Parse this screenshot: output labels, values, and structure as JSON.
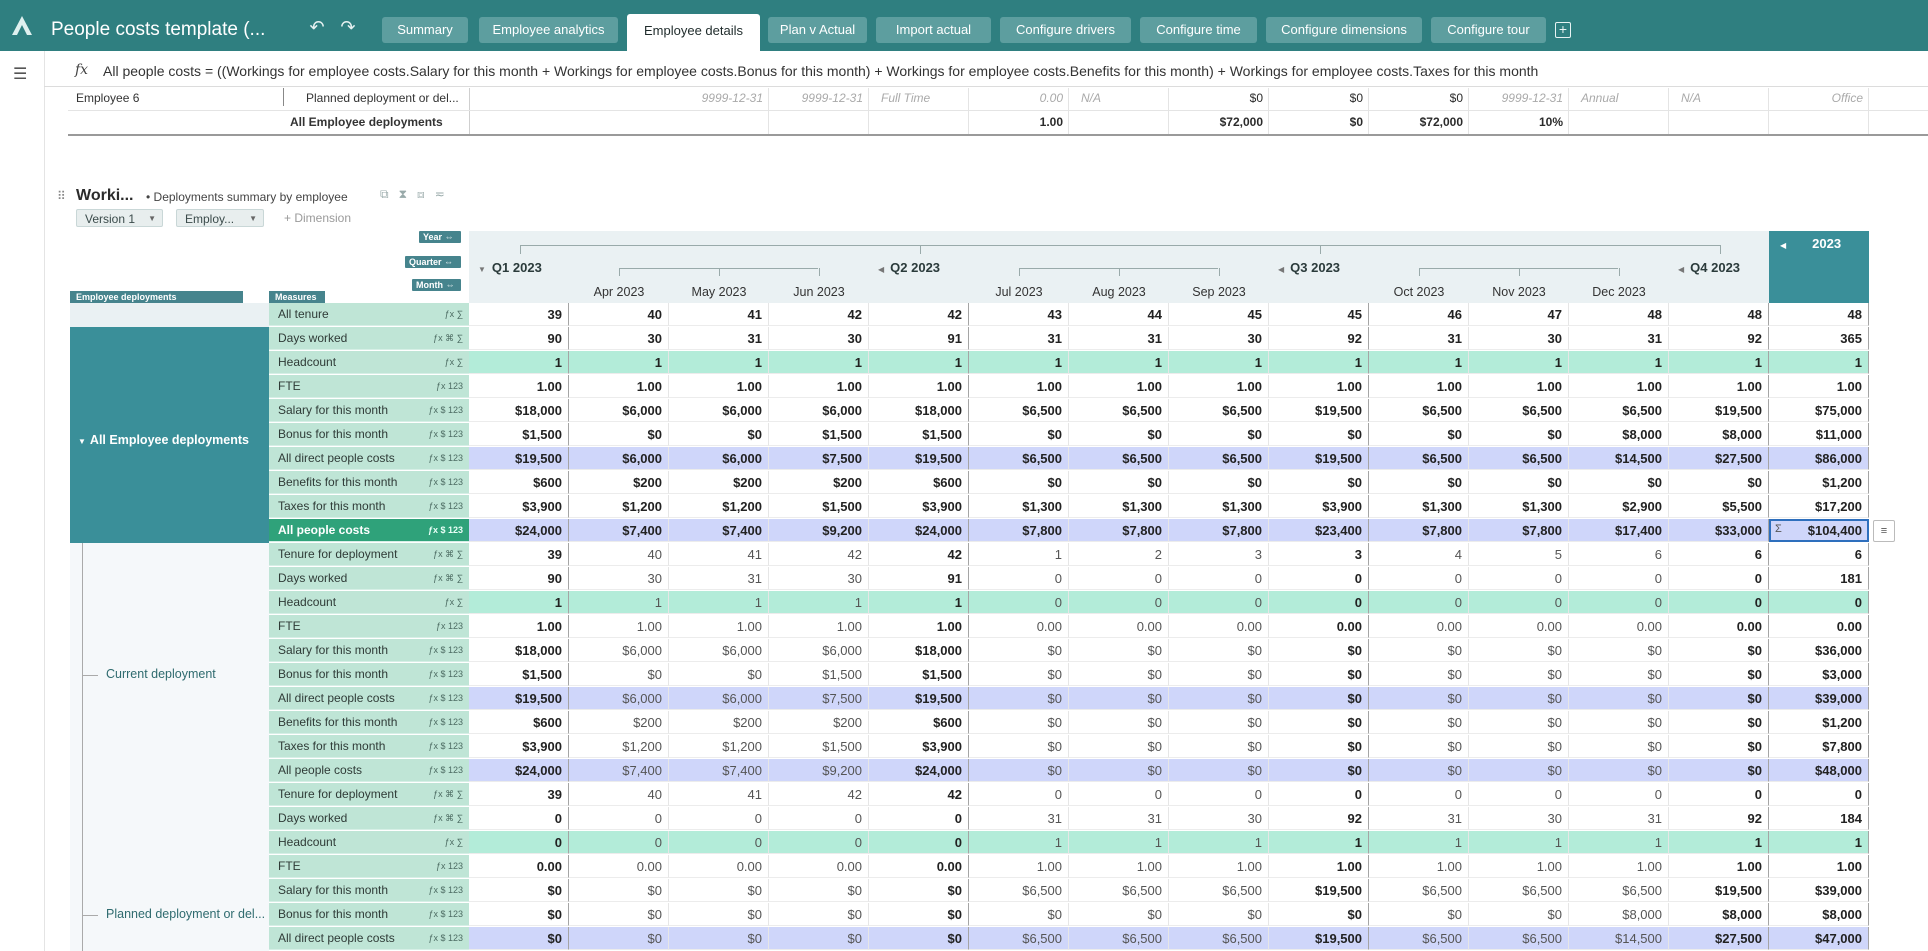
{
  "app": {
    "title": "People costs template (..."
  },
  "tabs": [
    "Summary",
    "Employee analytics",
    "Employee details",
    "Plan v Actual",
    "Import actual",
    "Configure drivers",
    "Configure time",
    "Configure dimensions",
    "Configure tour"
  ],
  "active_tab": "Employee details",
  "formula": "All people costs = ((Workings for employee costs.Salary for this month + Workings for employee costs.Bonus for this month) + Workings for employee costs.Benefits for this month) + Workings for employee costs.Taxes for this month",
  "upper": {
    "employee": "Employee 6",
    "planned_label": "Planned deployment or del...",
    "all_label": "All Employee deployments",
    "row1": [
      "9999-12-31",
      "9999-12-31",
      "Full Time",
      "0.00",
      "N/A",
      "$0",
      "$0",
      "$0",
      "9999-12-31",
      "Annual",
      "N/A",
      "Office"
    ],
    "row2": [
      "1.00",
      "$72,000",
      "$0",
      "$72,000",
      "10%"
    ]
  },
  "block": {
    "title": "Worki...",
    "subtitle": "Deployments summary by employee",
    "version_chip": "Version 1",
    "employee_chip": "Employ...",
    "add_dimension": "+ Dimension",
    "axis": {
      "year": "Year",
      "quarter": "Quarter",
      "month": "Month"
    },
    "page_tag_deployments": "Employee deployments",
    "page_tag_measures": "Measures"
  },
  "columns": {
    "quarters": [
      "Q1 2023",
      "Q2 2023",
      "Q3 2023",
      "Q4 2023"
    ],
    "months": [
      "Apr 2023",
      "May 2023",
      "Jun 2023",
      "Jul 2023",
      "Aug 2023",
      "Sep 2023",
      "Oct 2023",
      "Nov 2023",
      "Dec 2023"
    ],
    "year": "2023"
  },
  "groups": {
    "all": "All Employee deployments",
    "current": "Current deployment",
    "planned": "Planned deployment or del..."
  },
  "rows": [
    {
      "label": "All tenure",
      "vals": [
        "39",
        "40",
        "41",
        "42",
        "42",
        "43",
        "44",
        "45",
        "45",
        "46",
        "47",
        "48",
        "48",
        "48"
      ]
    },
    {
      "label": "Days worked",
      "vals": [
        "90",
        "30",
        "31",
        "30",
        "91",
        "31",
        "31",
        "30",
        "92",
        "31",
        "30",
        "31",
        "92",
        "365"
      ]
    },
    {
      "label": "Headcount",
      "vals": [
        "1",
        "1",
        "1",
        "1",
        "1",
        "1",
        "1",
        "1",
        "1",
        "1",
        "1",
        "1",
        "1",
        "1"
      ]
    },
    {
      "label": "FTE",
      "vals": [
        "1.00",
        "1.00",
        "1.00",
        "1.00",
        "1.00",
        "1.00",
        "1.00",
        "1.00",
        "1.00",
        "1.00",
        "1.00",
        "1.00",
        "1.00",
        "1.00"
      ]
    },
    {
      "label": "Salary for this month",
      "vals": [
        "$18,000",
        "$6,000",
        "$6,000",
        "$6,000",
        "$18,000",
        "$6,500",
        "$6,500",
        "$6,500",
        "$19,500",
        "$6,500",
        "$6,500",
        "$6,500",
        "$19,500",
        "$75,000"
      ]
    },
    {
      "label": "Bonus for this month",
      "vals": [
        "$1,500",
        "$0",
        "$0",
        "$1,500",
        "$1,500",
        "$0",
        "$0",
        "$0",
        "$0",
        "$0",
        "$0",
        "$8,000",
        "$8,000",
        "$11,000"
      ]
    },
    {
      "label": "All direct people costs",
      "vals": [
        "$19,500",
        "$6,000",
        "$6,000",
        "$7,500",
        "$19,500",
        "$6,500",
        "$6,500",
        "$6,500",
        "$19,500",
        "$6,500",
        "$6,500",
        "$14,500",
        "$27,500",
        "$86,000"
      ]
    },
    {
      "label": "Benefits for this month",
      "vals": [
        "$600",
        "$200",
        "$200",
        "$200",
        "$600",
        "$0",
        "$0",
        "$0",
        "$0",
        "$0",
        "$0",
        "$0",
        "$0",
        "$1,200"
      ]
    },
    {
      "label": "Taxes for this month",
      "vals": [
        "$3,900",
        "$1,200",
        "$1,200",
        "$1,500",
        "$3,900",
        "$1,300",
        "$1,300",
        "$1,300",
        "$3,900",
        "$1,300",
        "$1,300",
        "$2,900",
        "$5,500",
        "$17,200"
      ]
    },
    {
      "label": "All people costs",
      "vals": [
        "$24,000",
        "$7,400",
        "$7,400",
        "$9,200",
        "$24,000",
        "$7,800",
        "$7,800",
        "$7,800",
        "$23,400",
        "$7,800",
        "$7,800",
        "$17,400",
        "$33,000",
        "$104,400"
      ]
    },
    {
      "label": "Tenure for deployment",
      "vals": [
        "39",
        "40",
        "41",
        "42",
        "42",
        "1",
        "2",
        "3",
        "3",
        "4",
        "5",
        "6",
        "6",
        "6"
      ]
    },
    {
      "label": "Days worked",
      "vals": [
        "90",
        "30",
        "31",
        "30",
        "91",
        "0",
        "0",
        "0",
        "0",
        "0",
        "0",
        "0",
        "0",
        "181"
      ]
    },
    {
      "label": "Headcount",
      "vals": [
        "1",
        "1",
        "1",
        "1",
        "1",
        "0",
        "0",
        "0",
        "0",
        "0",
        "0",
        "0",
        "0",
        "0"
      ]
    },
    {
      "label": "FTE",
      "vals": [
        "1.00",
        "1.00",
        "1.00",
        "1.00",
        "1.00",
        "0.00",
        "0.00",
        "0.00",
        "0.00",
        "0.00",
        "0.00",
        "0.00",
        "0.00",
        "0.00"
      ]
    },
    {
      "label": "Salary for this month",
      "vals": [
        "$18,000",
        "$6,000",
        "$6,000",
        "$6,000",
        "$18,000",
        "$0",
        "$0",
        "$0",
        "$0",
        "$0",
        "$0",
        "$0",
        "$0",
        "$36,000"
      ]
    },
    {
      "label": "Bonus for this month",
      "vals": [
        "$1,500",
        "$0",
        "$0",
        "$1,500",
        "$1,500",
        "$0",
        "$0",
        "$0",
        "$0",
        "$0",
        "$0",
        "$0",
        "$0",
        "$3,000"
      ]
    },
    {
      "label": "All direct people costs",
      "vals": [
        "$19,500",
        "$6,000",
        "$6,000",
        "$7,500",
        "$19,500",
        "$0",
        "$0",
        "$0",
        "$0",
        "$0",
        "$0",
        "$0",
        "$0",
        "$39,000"
      ]
    },
    {
      "label": "Benefits for this month",
      "vals": [
        "$600",
        "$200",
        "$200",
        "$200",
        "$600",
        "$0",
        "$0",
        "$0",
        "$0",
        "$0",
        "$0",
        "$0",
        "$0",
        "$1,200"
      ]
    },
    {
      "label": "Taxes for this month",
      "vals": [
        "$3,900",
        "$1,200",
        "$1,200",
        "$1,500",
        "$3,900",
        "$0",
        "$0",
        "$0",
        "$0",
        "$0",
        "$0",
        "$0",
        "$0",
        "$7,800"
      ]
    },
    {
      "label": "All people costs",
      "vals": [
        "$24,000",
        "$7,400",
        "$7,400",
        "$9,200",
        "$24,000",
        "$0",
        "$0",
        "$0",
        "$0",
        "$0",
        "$0",
        "$0",
        "$0",
        "$48,000"
      ]
    },
    {
      "label": "Tenure for deployment",
      "vals": [
        "39",
        "40",
        "41",
        "42",
        "42",
        "0",
        "0",
        "0",
        "0",
        "0",
        "0",
        "0",
        "0",
        "0"
      ]
    },
    {
      "label": "Days worked",
      "vals": [
        "0",
        "0",
        "0",
        "0",
        "0",
        "31",
        "31",
        "30",
        "92",
        "31",
        "30",
        "31",
        "92",
        "184"
      ]
    },
    {
      "label": "Headcount",
      "vals": [
        "0",
        "0",
        "0",
        "0",
        "0",
        "1",
        "1",
        "1",
        "1",
        "1",
        "1",
        "1",
        "1",
        "1"
      ]
    },
    {
      "label": "FTE",
      "vals": [
        "0.00",
        "0.00",
        "0.00",
        "0.00",
        "0.00",
        "1.00",
        "1.00",
        "1.00",
        "1.00",
        "1.00",
        "1.00",
        "1.00",
        "1.00",
        "1.00"
      ]
    },
    {
      "label": "Salary for this month",
      "vals": [
        "$0",
        "$0",
        "$0",
        "$0",
        "$0",
        "$6,500",
        "$6,500",
        "$6,500",
        "$19,500",
        "$6,500",
        "$6,500",
        "$6,500",
        "$19,500",
        "$39,000"
      ]
    },
    {
      "label": "Bonus for this month",
      "vals": [
        "$0",
        "$0",
        "$0",
        "$0",
        "$0",
        "$0",
        "$0",
        "$0",
        "$0",
        "$0",
        "$0",
        "$8,000",
        "$8,000",
        "$8,000"
      ]
    },
    {
      "label": "All direct people costs",
      "vals": [
        "$0",
        "$0",
        "$0",
        "$0",
        "$0",
        "$6,500",
        "$6,500",
        "$6,500",
        "$19,500",
        "$6,500",
        "$6,500",
        "$14,500",
        "$27,500",
        "$47,000"
      ]
    }
  ],
  "colors": {
    "teal": "#2f7f80",
    "headcount": "#b3ecd9",
    "direct": "#cfd6fa",
    "group": "#3a8f99"
  }
}
